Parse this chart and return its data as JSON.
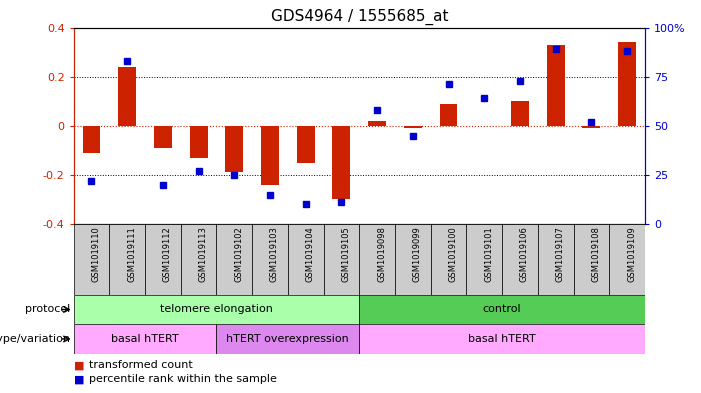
{
  "title": "GDS4964 / 1555685_at",
  "samples": [
    "GSM1019110",
    "GSM1019111",
    "GSM1019112",
    "GSM1019113",
    "GSM1019102",
    "GSM1019103",
    "GSM1019104",
    "GSM1019105",
    "GSM1019098",
    "GSM1019099",
    "GSM1019100",
    "GSM1019101",
    "GSM1019106",
    "GSM1019107",
    "GSM1019108",
    "GSM1019109"
  ],
  "red_values": [
    -0.11,
    0.24,
    -0.09,
    -0.13,
    -0.19,
    -0.24,
    -0.15,
    -0.3,
    0.02,
    -0.01,
    0.09,
    0.0,
    0.1,
    0.33,
    -0.01,
    0.34
  ],
  "blue_values": [
    22,
    83,
    20,
    27,
    25,
    15,
    10,
    11,
    58,
    45,
    71,
    64,
    73,
    89,
    52,
    88
  ],
  "ylim": [
    -0.4,
    0.4
  ],
  "yticks": [
    -0.4,
    -0.2,
    0.0,
    0.2,
    0.4
  ],
  "ytick_labels": [
    "-0.4",
    "-0.2",
    "0",
    "0.2",
    "0.4"
  ],
  "right_yticks": [
    0,
    25,
    50,
    75,
    100
  ],
  "right_ytick_labels": [
    "0",
    "25",
    "50",
    "75",
    "100%"
  ],
  "hline_dotted_black": [
    0.2,
    -0.2
  ],
  "red_color": "#cc2200",
  "blue_color": "#0000cc",
  "bar_width": 0.5,
  "blue_marker_size": 5,
  "protocol_labels": [
    "telomere elongation",
    "control"
  ],
  "protocol_ranges": [
    [
      0,
      7
    ],
    [
      8,
      15
    ]
  ],
  "protocol_color_light": "#aaffaa",
  "protocol_color_dark": "#55cc55",
  "genotype_labels": [
    "basal hTERT",
    "hTERT overexpression",
    "basal hTERT"
  ],
  "genotype_ranges": [
    [
      0,
      3
    ],
    [
      4,
      7
    ],
    [
      8,
      15
    ]
  ],
  "genotype_color_light": "#ffaaff",
  "genotype_color_dark": "#dd88ee",
  "label_protocol": "protocol",
  "label_genotype": "genotype/variation",
  "legend_red": "transformed count",
  "legend_blue": "percentile rank within the sample",
  "tick_area_color": "#cccccc",
  "background_color": "#ffffff"
}
